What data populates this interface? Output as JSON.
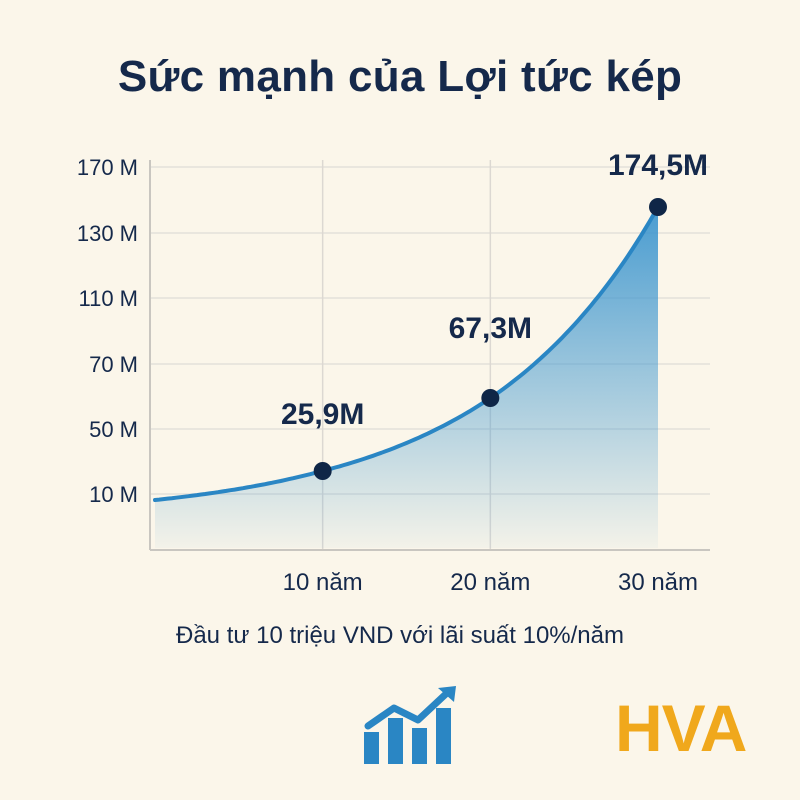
{
  "title": "Sức mạnh của Lợi tức kép",
  "subtitle": "Đầu tư 10 triệu VND với lãi suất 10%/năm",
  "brand": "HVA",
  "brand_icon": "growth-chart-icon",
  "colors": {
    "background": "#fbf6ea",
    "title": "#15294b",
    "line": "#2a86c4",
    "fill_top": "#3f97cf",
    "point": "#0f2647",
    "brand": "#f0a81c",
    "grid": "#e3e0da"
  },
  "chart_data": {
    "type": "area",
    "title": "Sức mạnh của Lợi tức kép",
    "xlabel": "",
    "ylabel": "",
    "x_ticks": [
      "10 năm",
      "20 năm",
      "30 năm"
    ],
    "y_ticks": [
      "170 M",
      "130 M",
      "110 M",
      "70 M",
      "50 M",
      "10 M"
    ],
    "grid": true,
    "series": [
      {
        "x": [
          0,
          10,
          20,
          30
        ],
        "y": [
          10,
          25.9,
          67.3,
          174.5
        ],
        "markers_at": [
          10,
          20,
          30
        ],
        "labels": [
          "25,9M",
          "67,3M",
          "174,5M"
        ]
      }
    ]
  }
}
